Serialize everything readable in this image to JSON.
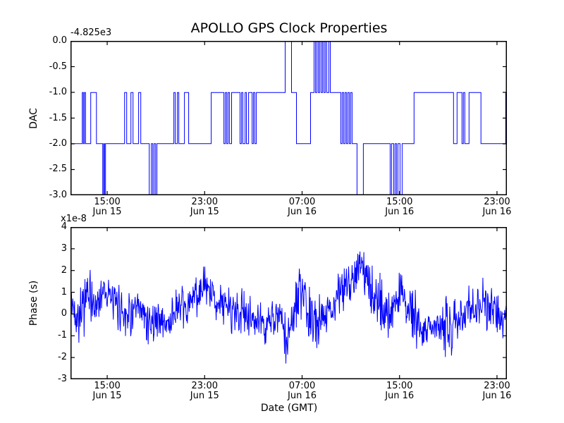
{
  "figure": {
    "background": "#ffffff",
    "frame_color": "#000000",
    "line_color": "#0000ff"
  },
  "chart_data": [
    {
      "type": "line",
      "name": "dac-subplot",
      "title": "APOLLO GPS Clock Properties",
      "ylabel": "DAC",
      "y_offset_text": "-4.825e3",
      "ylim": [
        -3,
        0
      ],
      "grid": false,
      "legend": "none",
      "yticks": [
        {
          "label": "0.0",
          "f": 0
        },
        {
          "label": "-0.5",
          "f": 0.1667
        },
        {
          "label": "-1.0",
          "f": 0.3333
        },
        {
          "label": "-1.5",
          "f": 0.5
        },
        {
          "label": "-2.0",
          "f": 0.6667
        },
        {
          "label": "-2.5",
          "f": 0.8333
        },
        {
          "label": "-3.0",
          "f": 1
        }
      ],
      "xticks": [
        {
          "f": 0.0841,
          "time": "15:00",
          "date": "Jun 15"
        },
        {
          "f": 0.3074,
          "time": "23:00",
          "date": "Jun 15"
        },
        {
          "f": 0.5307,
          "time": "07:00",
          "date": "Jun 16"
        },
        {
          "f": 0.754,
          "time": "15:00",
          "date": "Jun 16"
        },
        {
          "f": 0.9773,
          "time": "23:00",
          "date": "Jun 16"
        }
      ],
      "steps": [
        [
          0,
          -2
        ],
        [
          0.0259,
          -1
        ],
        [
          0.0283,
          -2
        ],
        [
          0.0307,
          -1
        ],
        [
          0.0332,
          -2
        ],
        [
          0.0453,
          -1
        ],
        [
          0.0583,
          -2
        ],
        [
          0.0728,
          -3
        ],
        [
          0.0752,
          -2
        ],
        [
          0.0769,
          -3
        ],
        [
          0.0793,
          -2
        ],
        [
          0.123,
          -1
        ],
        [
          0.1278,
          -2
        ],
        [
          0.1375,
          -1
        ],
        [
          0.1424,
          -2
        ],
        [
          0.1553,
          -1
        ],
        [
          0.1602,
          -2
        ],
        [
          0.1796,
          -3
        ],
        [
          0.1845,
          -2
        ],
        [
          0.1877,
          -3
        ],
        [
          0.1909,
          -2
        ],
        [
          0.1942,
          -3
        ],
        [
          0.1974,
          -2
        ],
        [
          0.2362,
          -1
        ],
        [
          0.2395,
          -2
        ],
        [
          0.2443,
          -1
        ],
        [
          0.2476,
          -2
        ],
        [
          0.2605,
          -1
        ],
        [
          0.2702,
          -2
        ],
        [
          0.322,
          -1
        ],
        [
          0.3511,
          -2
        ],
        [
          0.3544,
          -1
        ],
        [
          0.3576,
          -2
        ],
        [
          0.3608,
          -1
        ],
        [
          0.3641,
          -2
        ],
        [
          0.3689,
          -1
        ],
        [
          0.3883,
          -2
        ],
        [
          0.3916,
          -1
        ],
        [
          0.3948,
          -2
        ],
        [
          0.3997,
          -1
        ],
        [
          0.4029,
          -2
        ],
        [
          0.4078,
          -1
        ],
        [
          0.4159,
          -2
        ],
        [
          0.4191,
          -1
        ],
        [
          0.4223,
          -2
        ],
        [
          0.4256,
          -1
        ],
        [
          0.4919,
          0
        ],
        [
          0.5065,
          -1
        ],
        [
          0.5178,
          -2
        ],
        [
          0.5502,
          -1
        ],
        [
          0.5583,
          0
        ],
        [
          0.5615,
          -1
        ],
        [
          0.5648,
          0
        ],
        [
          0.568,
          -1
        ],
        [
          0.5712,
          0
        ],
        [
          0.5745,
          -1
        ],
        [
          0.5777,
          0
        ],
        [
          0.5809,
          -1
        ],
        [
          0.5841,
          0
        ],
        [
          0.5874,
          -1
        ],
        [
          0.5922,
          0
        ],
        [
          0.5955,
          -1
        ],
        [
          0.6197,
          -2
        ],
        [
          0.6229,
          -1
        ],
        [
          0.6262,
          -2
        ],
        [
          0.6294,
          -1
        ],
        [
          0.6326,
          -2
        ],
        [
          0.6359,
          -1
        ],
        [
          0.6391,
          -2
        ],
        [
          0.6424,
          -1
        ],
        [
          0.6456,
          -2
        ],
        [
          0.657,
          -3
        ],
        [
          0.6715,
          -2
        ],
        [
          0.733,
          -3
        ],
        [
          0.7362,
          -2
        ],
        [
          0.7411,
          -3
        ],
        [
          0.7443,
          -2
        ],
        [
          0.7476,
          -3
        ],
        [
          0.7508,
          -2
        ],
        [
          0.7557,
          -3
        ],
        [
          0.7605,
          -2
        ],
        [
          0.788,
          -1
        ],
        [
          0.8786,
          -2
        ],
        [
          0.8867,
          -1
        ],
        [
          0.898,
          -2
        ],
        [
          0.9013,
          -1
        ],
        [
          0.9045,
          -2
        ],
        [
          0.9142,
          -1
        ],
        [
          0.9417,
          -2
        ],
        [
          0.9984,
          -1
        ],
        [
          1,
          -1
        ]
      ]
    },
    {
      "type": "line",
      "name": "phase-subplot",
      "ylabel": "Phase (s)",
      "y_offset_text": "x1e-8",
      "xlabel": "Date (GMT)",
      "ylim": [
        -3,
        4
      ],
      "grid": false,
      "legend": "none",
      "yticks": [
        {
          "label": "4",
          "f": 0
        },
        {
          "label": "3",
          "f": 0.1429
        },
        {
          "label": "2",
          "f": 0.2857
        },
        {
          "label": "1",
          "f": 0.4286
        },
        {
          "label": "0",
          "f": 0.5714
        },
        {
          "label": "-1",
          "f": 0.7143
        },
        {
          "label": "-2",
          "f": 0.8571
        },
        {
          "label": "-3",
          "f": 1
        }
      ],
      "xticks": [
        {
          "f": 0.0841,
          "time": "15:00",
          "date": "Jun 15"
        },
        {
          "f": 0.3074,
          "time": "23:00",
          "date": "Jun 15"
        },
        {
          "f": 0.5307,
          "time": "07:00",
          "date": "Jun 16"
        },
        {
          "f": 0.754,
          "time": "15:00",
          "date": "Jun 16"
        },
        {
          "f": 0.9773,
          "time": "23:00",
          "date": "Jun 16"
        }
      ],
      "noise_envelope": [
        [
          0.0,
          0.4,
          0.9
        ],
        [
          0.016,
          0.0,
          1.2
        ],
        [
          0.036,
          0.8,
          1.6
        ],
        [
          0.057,
          0.3,
          0.8
        ],
        [
          0.076,
          1.3,
          0.9
        ],
        [
          0.097,
          0.5,
          0.8
        ],
        [
          0.117,
          0.2,
          1.1
        ],
        [
          0.138,
          0.0,
          1.0
        ],
        [
          0.157,
          0.1,
          0.9
        ],
        [
          0.181,
          -0.4,
          1.0
        ],
        [
          0.202,
          -0.2,
          0.8
        ],
        [
          0.222,
          -0.5,
          1.0
        ],
        [
          0.243,
          0.3,
          1.1
        ],
        [
          0.264,
          0.1,
          0.8
        ],
        [
          0.288,
          1.0,
          1.1
        ],
        [
          0.311,
          1.1,
          1.0
        ],
        [
          0.332,
          0.7,
          0.9
        ],
        [
          0.356,
          0.3,
          0.9
        ],
        [
          0.38,
          0.2,
          1.3
        ],
        [
          0.405,
          -0.1,
          0.9
        ],
        [
          0.429,
          -0.4,
          0.9
        ],
        [
          0.45,
          -0.5,
          1.0
        ],
        [
          0.472,
          -0.1,
          0.8
        ],
        [
          0.485,
          -0.4,
          0.9
        ],
        [
          0.495,
          -1.5,
          1.1
        ],
        [
          0.505,
          -0.4,
          1.0
        ],
        [
          0.515,
          0.3,
          1.0
        ],
        [
          0.524,
          1.0,
          1.3
        ],
        [
          0.534,
          0.6,
          1.0
        ],
        [
          0.555,
          -0.5,
          1.3
        ],
        [
          0.579,
          0.0,
          0.9
        ],
        [
          0.602,
          0.4,
          1.0
        ],
        [
          0.626,
          1.2,
          1.0
        ],
        [
          0.647,
          1.8,
          0.9
        ],
        [
          0.667,
          2.3,
          1.0
        ],
        [
          0.686,
          1.1,
          1.0
        ],
        [
          0.709,
          0.5,
          1.3
        ],
        [
          0.731,
          0.0,
          1.1
        ],
        [
          0.757,
          0.9,
          1.1
        ],
        [
          0.78,
          0.3,
          1.1
        ],
        [
          0.793,
          -0.5,
          1.3
        ],
        [
          0.806,
          -0.6,
          0.9
        ],
        [
          0.822,
          -0.7,
          0.8
        ],
        [
          0.845,
          -0.6,
          0.9
        ],
        [
          0.861,
          -0.5,
          1.3
        ],
        [
          0.871,
          -0.8,
          1.6
        ],
        [
          0.882,
          -0.3,
          1.0
        ],
        [
          0.893,
          0.1,
          1.1
        ],
        [
          0.916,
          0.2,
          1.0
        ],
        [
          0.939,
          0.5,
          1.0
        ],
        [
          0.961,
          0.4,
          1.1
        ],
        [
          0.981,
          0.0,
          0.9
        ],
        [
          0.994,
          -0.7,
          0.8
        ],
        [
          1.0,
          0.3,
          0.5
        ]
      ]
    }
  ]
}
